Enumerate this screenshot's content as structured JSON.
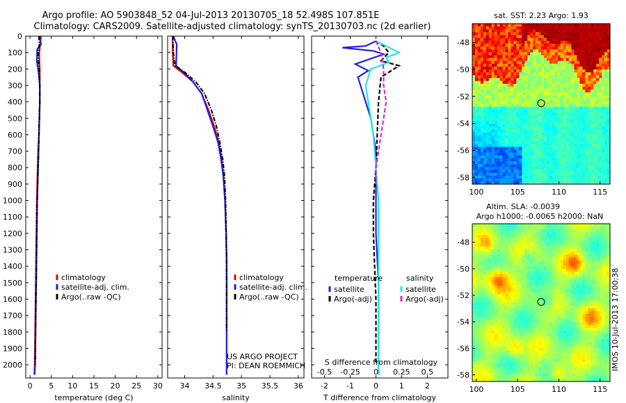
{
  "header": {
    "title_line1": "Argo profile: AO 5903848_52 04-Jul-2013 20130705_18 52.498S 107.851E",
    "title_line2": "Climatology: CARS2009. Satellite-adjusted climatology: synTS_20130703.nc (2d earlier)"
  },
  "depth_ticks": [
    0,
    100,
    200,
    300,
    400,
    500,
    600,
    700,
    800,
    900,
    1000,
    1100,
    1200,
    1300,
    1400,
    1500,
    1600,
    1700,
    1800,
    1900,
    2000
  ],
  "colors": {
    "red": "#e60000",
    "blue": "#1f1fe0",
    "black": "#000000",
    "cyan": "#22e6e6",
    "magenta": "#e21ee2"
  },
  "chart_data": [
    {
      "id": "temperature",
      "type": "line",
      "xlabel": "temperature (deg C)",
      "xlim": [
        -1,
        31
      ],
      "ylim": [
        0,
        2080
      ],
      "y_reversed": true,
      "x_ticks": [
        0,
        5,
        10,
        15,
        20,
        25,
        30
      ],
      "legend": [
        "climatology",
        "satellite-adj. clim.",
        "Argo(..raw -QC)"
      ],
      "series": [
        {
          "name": "climatology",
          "color": "red",
          "style": "solid",
          "x": [
            2.6,
            2.4,
            2.2,
            2.2,
            2.3,
            2.3,
            2.3,
            2.2,
            2.1,
            1.9,
            1.8,
            1.6,
            1.5,
            1.4,
            1.3,
            1.2,
            1.1,
            1.0
          ],
          "y": [
            0,
            50,
            100,
            150,
            200,
            300,
            400,
            500,
            600,
            700,
            800,
            1000,
            1200,
            1400,
            1600,
            1800,
            2000,
            2060
          ]
        },
        {
          "name": "satellite-adj. clim.",
          "color": "blue",
          "style": "solid",
          "x": [
            2.3,
            2.6,
            1.7,
            1.6,
            2.0,
            2.3,
            2.3,
            2.2,
            2.1,
            2.0,
            1.9,
            1.7,
            1.6,
            1.5,
            1.4,
            1.3,
            1.2,
            1.1
          ],
          "y": [
            0,
            50,
            80,
            150,
            220,
            300,
            400,
            500,
            600,
            700,
            800,
            1000,
            1200,
            1400,
            1600,
            1800,
            2000,
            2060
          ]
        },
        {
          "name": "Argo(..raw -QC)",
          "color": "black",
          "style": "dashdot",
          "x": [
            2.1,
            2.2,
            1.9,
            2.1,
            2.3,
            2.3,
            2.2,
            2.1,
            2.0,
            1.9,
            1.7,
            1.6,
            1.5,
            1.4,
            1.3,
            1.2
          ],
          "y": [
            0,
            50,
            100,
            200,
            300,
            400,
            500,
            600,
            700,
            800,
            1000,
            1200,
            1400,
            1600,
            1800,
            2000
          ]
        }
      ]
    },
    {
      "id": "salinity",
      "type": "line",
      "xlabel": "salinity",
      "xlim": [
        33.7,
        36.1
      ],
      "ylim": [
        0,
        2080
      ],
      "y_reversed": true,
      "x_ticks": [
        34,
        34.5,
        35,
        35.5,
        36
      ],
      "legend": [
        "climatology",
        "satellite-adj. clim.",
        "Argo(..raw -QC)"
      ],
      "annotation": [
        "US ARGO PROJECT",
        "PI: DEAN ROEMMICH"
      ],
      "series": [
        {
          "name": "climatology",
          "color": "red",
          "style": "solid",
          "x": [
            33.79,
            33.79,
            33.8,
            33.95,
            34.15,
            34.3,
            34.42,
            34.52,
            34.6,
            34.65,
            34.68,
            34.71,
            34.73,
            34.74,
            34.74,
            34.74,
            34.74,
            34.74
          ],
          "y": [
            0,
            100,
            180,
            220,
            280,
            350,
            450,
            550,
            650,
            750,
            850,
            1000,
            1200,
            1400,
            1600,
            1800,
            2000,
            2060
          ]
        },
        {
          "name": "satellite-adj. clim.",
          "color": "blue",
          "style": "solid",
          "x": [
            33.8,
            33.86,
            33.85,
            33.98,
            34.15,
            34.3,
            34.4,
            34.5,
            34.59,
            34.64,
            34.68,
            34.71,
            34.73,
            34.74,
            34.74,
            34.74,
            34.74,
            34.74
          ],
          "y": [
            0,
            50,
            180,
            220,
            280,
            350,
            450,
            550,
            650,
            750,
            850,
            1000,
            1200,
            1400,
            1600,
            1800,
            2000,
            2060
          ]
        },
        {
          "name": "Argo(..raw -QC)",
          "color": "black",
          "style": "dashdot",
          "x": [
            33.79,
            33.8,
            33.83,
            34.0,
            34.2,
            34.35,
            34.47,
            34.56,
            34.62,
            34.67,
            34.7,
            34.72,
            34.73,
            34.74,
            34.74,
            34.74
          ],
          "y": [
            0,
            100,
            180,
            220,
            280,
            350,
            450,
            550,
            650,
            750,
            850,
            1000,
            1200,
            1400,
            1600,
            1800
          ]
        }
      ]
    },
    {
      "id": "difference",
      "type": "line",
      "xlabel": "T difference from climatology",
      "top_label": "S difference from climatology",
      "xlim": [
        -2.5,
        2.8
      ],
      "ylim": [
        0,
        2080
      ],
      "y_reversed": true,
      "x_ticks": [
        -2,
        -1,
        0,
        1,
        2
      ],
      "s_ticks": [
        "-0.5",
        "-0.25",
        "0",
        "0.25",
        "0.5"
      ],
      "s_tick_positions_T": [
        -2,
        -1,
        0,
        1,
        2
      ],
      "legend_titles": [
        "temperature",
        "salinity"
      ],
      "legend": [
        "satellite",
        "Argo(-adj)",
        "satellite",
        "Argo(-adj)"
      ],
      "series": [
        {
          "name": "T satellite",
          "color": "blue",
          "style": "solid",
          "x": [
            0.0,
            -0.4,
            -1.3,
            -0.1,
            0.3,
            -0.8,
            -0.3,
            -0.7,
            -0.5,
            -0.2,
            0.0,
            0.0,
            0.0,
            0.1,
            0.1,
            0.1,
            0.1
          ],
          "y": [
            30,
            60,
            70,
            90,
            110,
            170,
            210,
            250,
            350,
            500,
            700,
            900,
            1200,
            1500,
            1800,
            2000,
            2060
          ]
        },
        {
          "name": "T Argo(-adj)",
          "color": "black",
          "style": "dashed",
          "x": [
            0.0,
            0.3,
            0.5,
            0.2,
            0.9,
            0.2,
            0.1,
            0.05,
            0.0,
            -0.1,
            -0.1,
            -0.05,
            0.0,
            0.0
          ],
          "y": [
            30,
            60,
            100,
            150,
            180,
            250,
            400,
            600,
            800,
            1000,
            1200,
            1400,
            1600,
            2000
          ]
        },
        {
          "name": "S satellite",
          "color": "cyan",
          "style": "solid",
          "x": [
            0.0,
            0.4,
            0.9,
            0.4,
            0.5,
            -0.2,
            -0.4,
            -0.3,
            -0.1,
            0.0,
            0.1,
            0.1,
            0.1,
            0.1
          ],
          "y": [
            30,
            60,
            100,
            130,
            160,
            200,
            300,
            400,
            600,
            800,
            1000,
            1400,
            1800,
            2060
          ]
        },
        {
          "name": "S Argo(-adj)",
          "color": "magenta",
          "style": "dashed",
          "x": [
            0.0,
            0.2,
            0.3,
            0.3,
            0.4,
            0.3,
            0.2,
            0.1,
            0.0,
            0.0
          ],
          "y": [
            30,
            100,
            200,
            300,
            400,
            500,
            600,
            700,
            800,
            900
          ]
        }
      ]
    },
    {
      "id": "sst_map",
      "type": "heatmap",
      "title": "sat. SST: 2.23 Argo: 1.93",
      "xlim": [
        99.5,
        116.2
      ],
      "ylim": [
        -58.5,
        -46.6
      ],
      "x_ticks": [
        100,
        105,
        110,
        115
      ],
      "y_ticks": [
        -48,
        -50,
        -52,
        -54,
        -56,
        -58
      ],
      "marker": {
        "lon": 107.851,
        "lat": -52.498
      }
    },
    {
      "id": "sla_map",
      "type": "heatmap",
      "title_line1": "Altim. SLA: -0.0039",
      "title_line2": "Argo h1000: -0.0065 h2000: NaN",
      "xlim": [
        99.5,
        116.2
      ],
      "ylim": [
        -58.5,
        -46.6
      ],
      "x_ticks": [
        100,
        105,
        110,
        115
      ],
      "y_ticks": [
        -48,
        -50,
        -52,
        -54,
        -56,
        -58
      ],
      "marker": {
        "lon": 107.851,
        "lat": -52.498
      },
      "side_label": "IMOS 10-Jul-2013 17:00:38"
    }
  ]
}
